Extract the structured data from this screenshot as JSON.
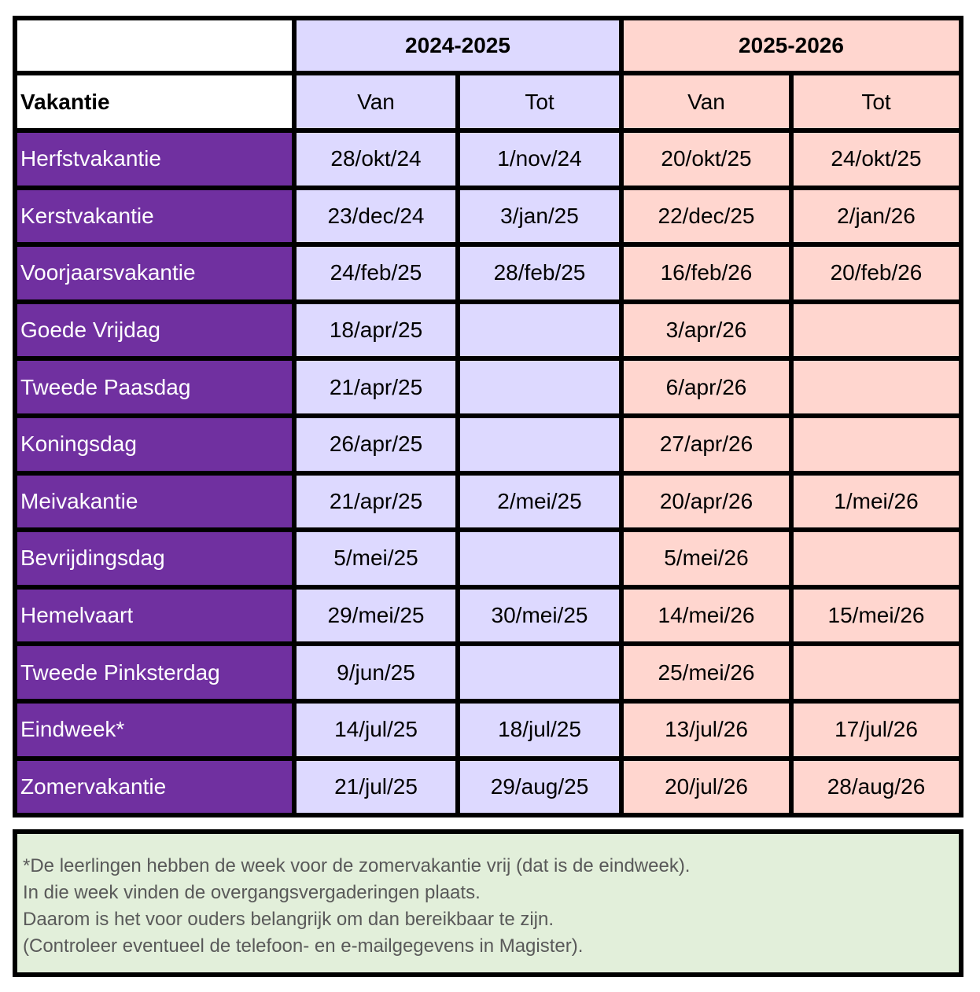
{
  "table": {
    "years": [
      "2024-2025",
      "2025-2026"
    ],
    "header": {
      "vakantie": "Vakantie",
      "van": "Van",
      "tot": "Tot"
    },
    "rows": [
      {
        "name": "Herfstvakantie",
        "y1_van": "28/okt/24",
        "y1_tot": "1/nov/24",
        "y2_van": "20/okt/25",
        "y2_tot": "24/okt/25"
      },
      {
        "name": "Kerstvakantie",
        "y1_van": "23/dec/24",
        "y1_tot": "3/jan/25",
        "y2_van": "22/dec/25",
        "y2_tot": "2/jan/26"
      },
      {
        "name": "Voorjaarsvakantie",
        "y1_van": "24/feb/25",
        "y1_tot": "28/feb/25",
        "y2_van": "16/feb/26",
        "y2_tot": "20/feb/26"
      },
      {
        "name": "Goede Vrijdag",
        "y1_van": "18/apr/25",
        "y1_tot": "",
        "y2_van": "3/apr/26",
        "y2_tot": ""
      },
      {
        "name": "Tweede Paasdag",
        "y1_van": "21/apr/25",
        "y1_tot": "",
        "y2_van": "6/apr/26",
        "y2_tot": ""
      },
      {
        "name": "Koningsdag",
        "y1_van": "26/apr/25",
        "y1_tot": "",
        "y2_van": "27/apr/26",
        "y2_tot": ""
      },
      {
        "name": "Meivakantie",
        "y1_van": "21/apr/25",
        "y1_tot": "2/mei/25",
        "y2_van": "20/apr/26",
        "y2_tot": "1/mei/26"
      },
      {
        "name": "Bevrijdingsdag",
        "y1_van": "5/mei/25",
        "y1_tot": "",
        "y2_van": "5/mei/26",
        "y2_tot": ""
      },
      {
        "name": "Hemelvaart",
        "y1_van": "29/mei/25",
        "y1_tot": "30/mei/25",
        "y2_van": "14/mei/26",
        "y2_tot": "15/mei/26"
      },
      {
        "name": "Tweede Pinksterdag",
        "y1_van": "9/jun/25",
        "y1_tot": "",
        "y2_van": "25/mei/26",
        "y2_tot": ""
      },
      {
        "name": "Eindweek*",
        "y1_van": "14/jul/25",
        "y1_tot": "18/jul/25",
        "y2_van": "13/jul/26",
        "y2_tot": "17/jul/26"
      },
      {
        "name": "Zomervakantie",
        "y1_van": "21/jul/25",
        "y1_tot": "29/aug/25",
        "y2_van": "20/jul/26",
        "y2_tot": "28/aug/26"
      }
    ]
  },
  "note": {
    "lines": [
      "*De leerlingen hebben de week voor de zomervakantie vrij (dat is de eindweek).",
      "In die week vinden de overgangsvergaderingen plaats.",
      "Daarom is het voor ouders belangrijk om dan bereikbaar te zijn.",
      "(Controleer eventueel de telefoon- en e-mailgegevens in Magister)."
    ]
  },
  "colors": {
    "name_column": "#7030a0",
    "year1": "#ddd9ff",
    "year2": "#ffd6cf",
    "note_background": "#e2efda",
    "note_text": "#595959",
    "border": "#000000"
  }
}
